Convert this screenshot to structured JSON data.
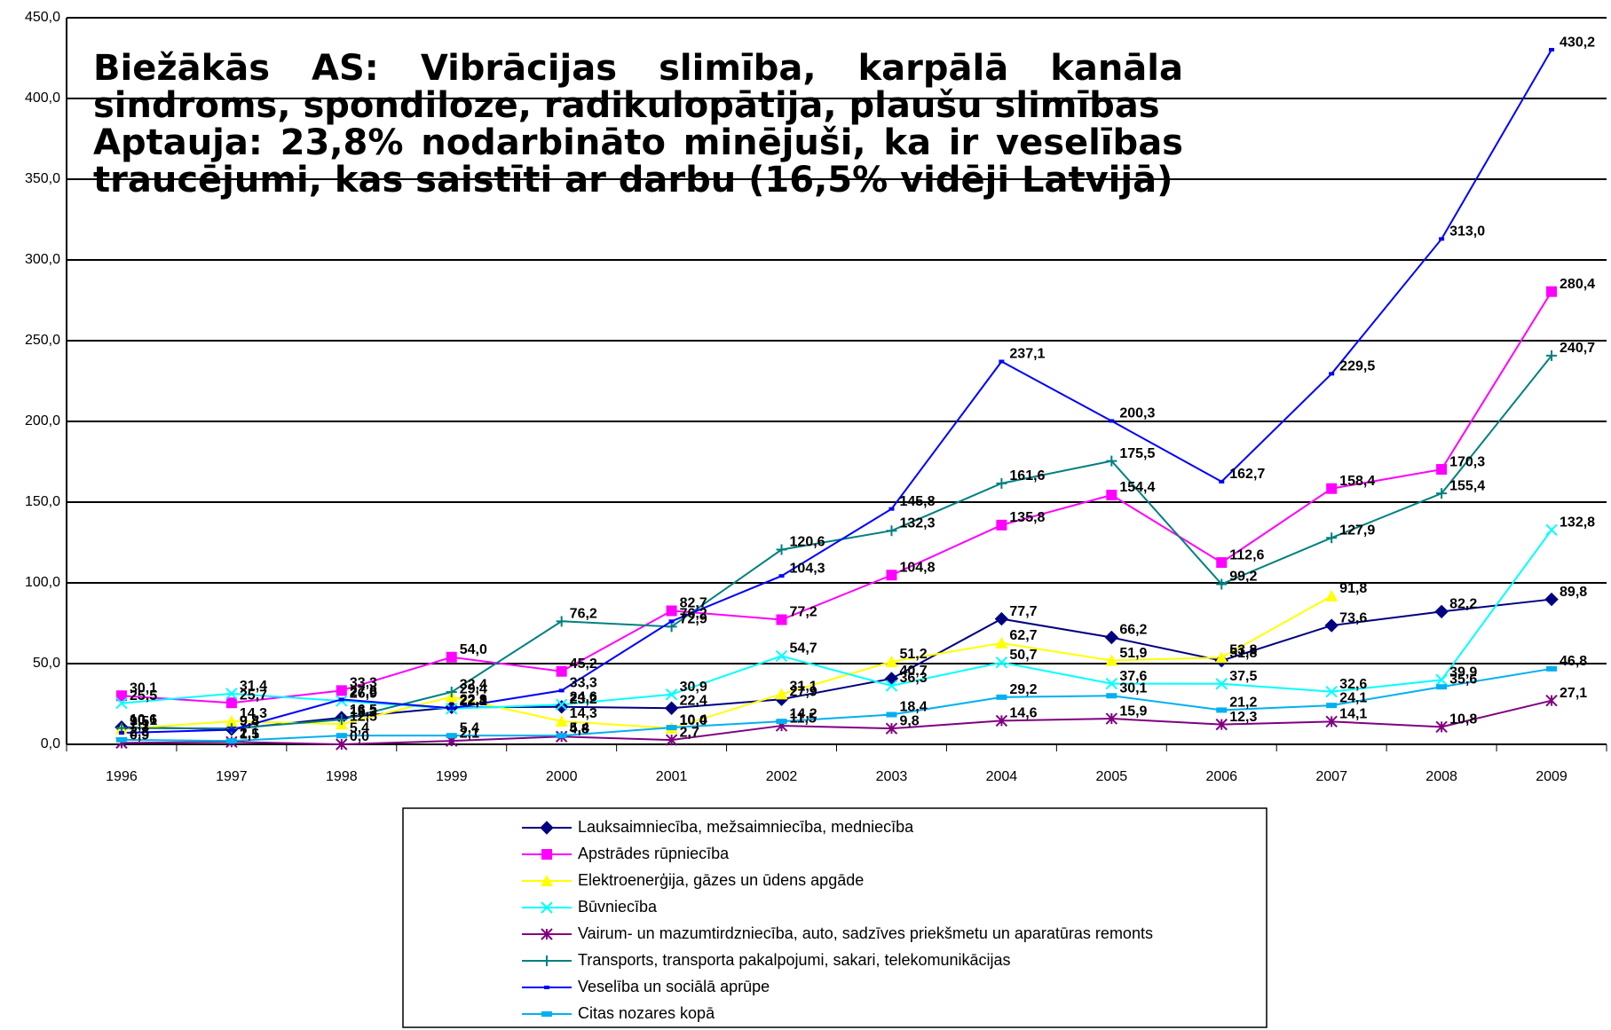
{
  "chart_data": {
    "type": "line",
    "annotations": [
      "Biežākās AS: Vibrācijas slimība, karpālā kanāla sindroms, spondiloze, radikulopātija, plaušu slimības",
      "Aptauja: 23,8% nodarbināto minējuši, ka ir veselības traucējumi, kas saistīti ar darbu (16,5% vidēji Latvijā)"
    ],
    "categories": [
      "1996",
      "1997",
      "1998",
      "1999",
      "2000",
      "2001",
      "2002",
      "2003",
      "2004",
      "2005",
      "2006",
      "2007",
      "2008",
      "2009"
    ],
    "ylim": [
      0,
      450
    ],
    "yticks": [
      {
        "value": 0,
        "label": "0,0"
      },
      {
        "value": 50,
        "label": "50,0"
      },
      {
        "value": 100,
        "label": "100,0"
      },
      {
        "value": 150,
        "label": "150,0"
      },
      {
        "value": 200,
        "label": "200,0"
      },
      {
        "value": 250,
        "label": "250,0"
      },
      {
        "value": 300,
        "label": "300,0"
      },
      {
        "value": 350,
        "label": "350,0"
      },
      {
        "value": 400,
        "label": "400,0"
      },
      {
        "value": 450,
        "label": "450,0"
      }
    ],
    "grid": true,
    "series": [
      {
        "name": "Lauksaimniecība, mežsaimniecība, medniecība",
        "color": "#000080",
        "marker": "diamond",
        "values": [
          10.6,
          9.4,
          16.5,
          22.9,
          23.2,
          22.4,
          27.9,
          40.7,
          77.7,
          66.2,
          51.8,
          73.6,
          82.2,
          89.8
        ],
        "value_labels": [
          "10,6",
          "9,4",
          "16,5",
          "22,9",
          "23,2",
          "22,4",
          "27,9",
          "40,7",
          "77,7",
          "66,2",
          "51,8",
          "73,6",
          "82,2",
          "89,8"
        ]
      },
      {
        "name": "Apstrādes rūpniecība",
        "color": "#FF00FF",
        "marker": "square",
        "values": [
          30.1,
          25.7,
          33.3,
          54.0,
          45.2,
          82.7,
          77.2,
          104.8,
          135.8,
          154.4,
          112.6,
          158.4,
          170.3,
          280.4
        ],
        "value_labels": [
          "30,1",
          "25,7",
          "33,3",
          "54,0",
          "45,2",
          "82,7",
          "77,2",
          "104,8",
          "135,8",
          "154,4",
          "112,6",
          "158,4",
          "170,3",
          "280,4"
        ]
      },
      {
        "name": "Elektroenerģija, gāzes un ūdens apgāde",
        "color": "#FFFF00",
        "marker": "triangle",
        "values": [
          9.5,
          14.3,
          12.5,
          29.4,
          14.3,
          10.0,
          31.1,
          51.2,
          62.7,
          51.9,
          53.8,
          91.8,
          null,
          null
        ],
        "value_labels": [
          "9,5",
          "14,3",
          "12,5",
          "29,4",
          "14,3",
          "10,0",
          "31,1",
          "51,2",
          "62,7",
          "51,9",
          "53,8",
          "91,8",
          null,
          null
        ]
      },
      {
        "name": "Būvniecība",
        "color": "#00FFFF",
        "marker": "x",
        "values": [
          25.5,
          31.4,
          26.9,
          22.1,
          24.6,
          30.9,
          54.7,
          36.3,
          50.7,
          37.6,
          37.5,
          32.6,
          39.9,
          132.8
        ],
        "value_labels": [
          "25,5",
          "31,4",
          "26,9",
          "22,1",
          "24,6",
          "30,9",
          "54,7",
          "36,3",
          "50,7",
          "37,6",
          "37,5",
          "32,6",
          "39,9",
          "132,8"
        ]
      },
      {
        "name": "Vairum- un mazumtirdzniecība, auto, sadzīves priekšmetu un aparatūras remonts",
        "color": "#800080",
        "marker": "star",
        "values": [
          0.9,
          1.5,
          0.0,
          2.1,
          4.8,
          2.7,
          11.5,
          9.8,
          14.6,
          15.9,
          12.3,
          14.1,
          10.8,
          27.1
        ],
        "value_labels": [
          "0,9",
          "1,5",
          "0,0",
          "2,1",
          "4,8",
          "2,7",
          "11,5",
          "9,8",
          "14,6",
          "15,9",
          "12,3",
          "14,1",
          "10,8",
          "27,1"
        ]
      },
      {
        "name": "Transports, transporta pakalpojumi, sakari, telekomunikācijas",
        "color": "#008080",
        "marker": "plus",
        "values": [
          10.1,
          9.8,
          15.3,
          32.4,
          76.2,
          72.9,
          120.6,
          132.3,
          161.6,
          175.5,
          99.2,
          127.9,
          155.4,
          240.7
        ],
        "value_labels": [
          "10,1",
          "9,8",
          "15,3",
          "32,4",
          "76,2",
          "72,9",
          "120,6",
          "132,3",
          "161,6",
          "175,5",
          "99,2",
          "127,9",
          "155,4",
          "240,7"
        ]
      },
      {
        "name": "Veselība un sociālā aprūpe",
        "color": "#0000FF",
        "marker": "dash",
        "values": [
          7.1,
          9,
          27.8,
          22.4,
          33.3,
          76.2,
          104.3,
          145.8,
          237.1,
          200.3,
          162.7,
          229.5,
          313.0,
          430.2
        ],
        "value_labels": [
          "7,1",
          null,
          "27,8",
          "22,4",
          "33,3",
          "76,2",
          "104,3",
          "145,8",
          "237,1",
          "200,3",
          "162,7",
          "229,5",
          "313,0",
          "430,2"
        ]
      },
      {
        "name": "Citas nozares kopā",
        "color": "#00B0F0",
        "marker": "rect",
        "values": [
          2.8,
          2.1,
          5.4,
          5.4,
          5.4,
          10.4,
          14.2,
          18.4,
          29.2,
          30.1,
          21.2,
          24.1,
          35.6,
          46.8
        ],
        "value_labels": [
          "2,8",
          "2,1",
          "5,4",
          "5,4",
          "5,4",
          "10,4",
          "14,2",
          "18,4",
          "29,2",
          "30,1",
          "21,2",
          "24,1",
          "35,6",
          "46,8"
        ]
      }
    ]
  }
}
